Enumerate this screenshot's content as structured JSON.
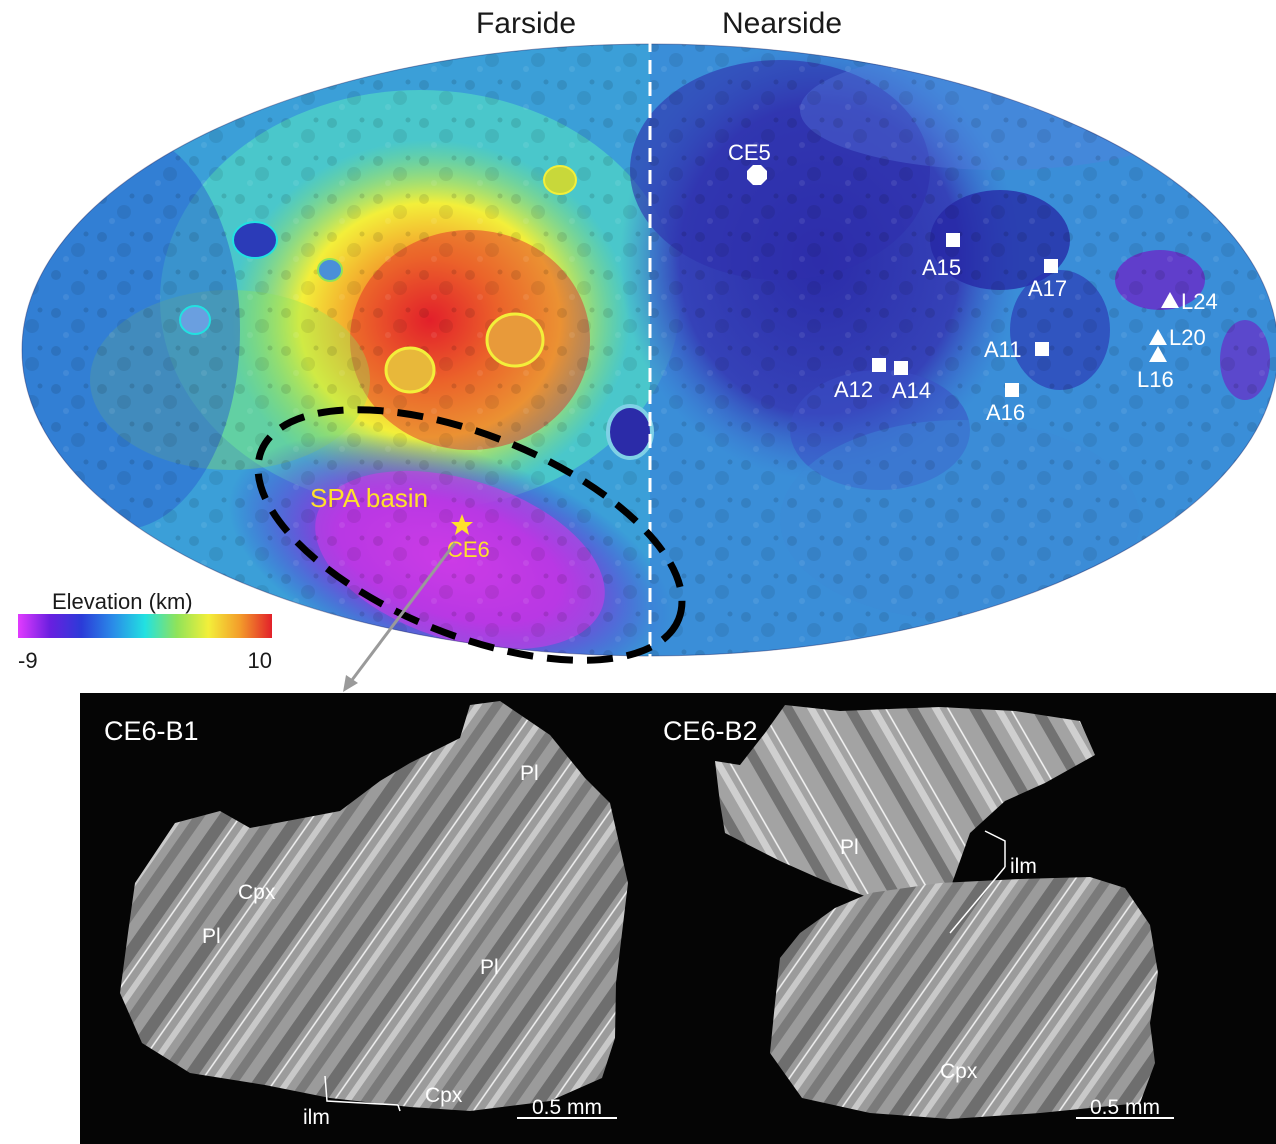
{
  "map": {
    "hemisphere_labels": {
      "farside": "Farside",
      "nearside": "Nearside"
    },
    "sites": [
      {
        "id": "CE5",
        "label": "CE5",
        "marker": "octagon"
      },
      {
        "id": "A15",
        "label": "A15",
        "marker": "square"
      },
      {
        "id": "A17",
        "label": "A17",
        "marker": "square"
      },
      {
        "id": "A11",
        "label": "A11",
        "marker": "square"
      },
      {
        "id": "A12",
        "label": "A12",
        "marker": "square"
      },
      {
        "id": "A14",
        "label": "A14",
        "marker": "square"
      },
      {
        "id": "A16",
        "label": "A16",
        "marker": "square"
      },
      {
        "id": "L24",
        "label": "L24",
        "marker": "triangle"
      },
      {
        "id": "L20",
        "label": "L20",
        "marker": "triangle"
      },
      {
        "id": "L16",
        "label": "L16",
        "marker": "triangle"
      }
    ],
    "basin_label": "SPA basin",
    "landing_site": {
      "label": "CE6",
      "marker": "star",
      "color": "#ffe12b"
    },
    "legend": {
      "title": "Elevation (km)",
      "min_label": "-9",
      "max_label": "10",
      "colors": [
        "#e23bff",
        "#6a1fe0",
        "#2b3bd8",
        "#2a8ce8",
        "#22e1e1",
        "#8fe35a",
        "#f3ef3a",
        "#f39b2a",
        "#e2202a"
      ]
    },
    "colors": {
      "label_white": "#ffffff",
      "label_yellow": "#ffe12b",
      "divider": "#ffffff",
      "basin_outline": "#000000"
    }
  },
  "samples": {
    "panels": [
      {
        "id": "CE6-B1",
        "title": "CE6-B1",
        "minerals": [
          "Pl",
          "Cpx",
          "Pl",
          "Pl",
          "Cpx",
          "ilm"
        ],
        "scale_bar": "0.5 mm"
      },
      {
        "id": "CE6-B2",
        "title": "CE6-B2",
        "minerals": [
          "Pl",
          "ilm",
          "Cpx"
        ],
        "scale_bar": "0.5 mm"
      }
    ]
  }
}
